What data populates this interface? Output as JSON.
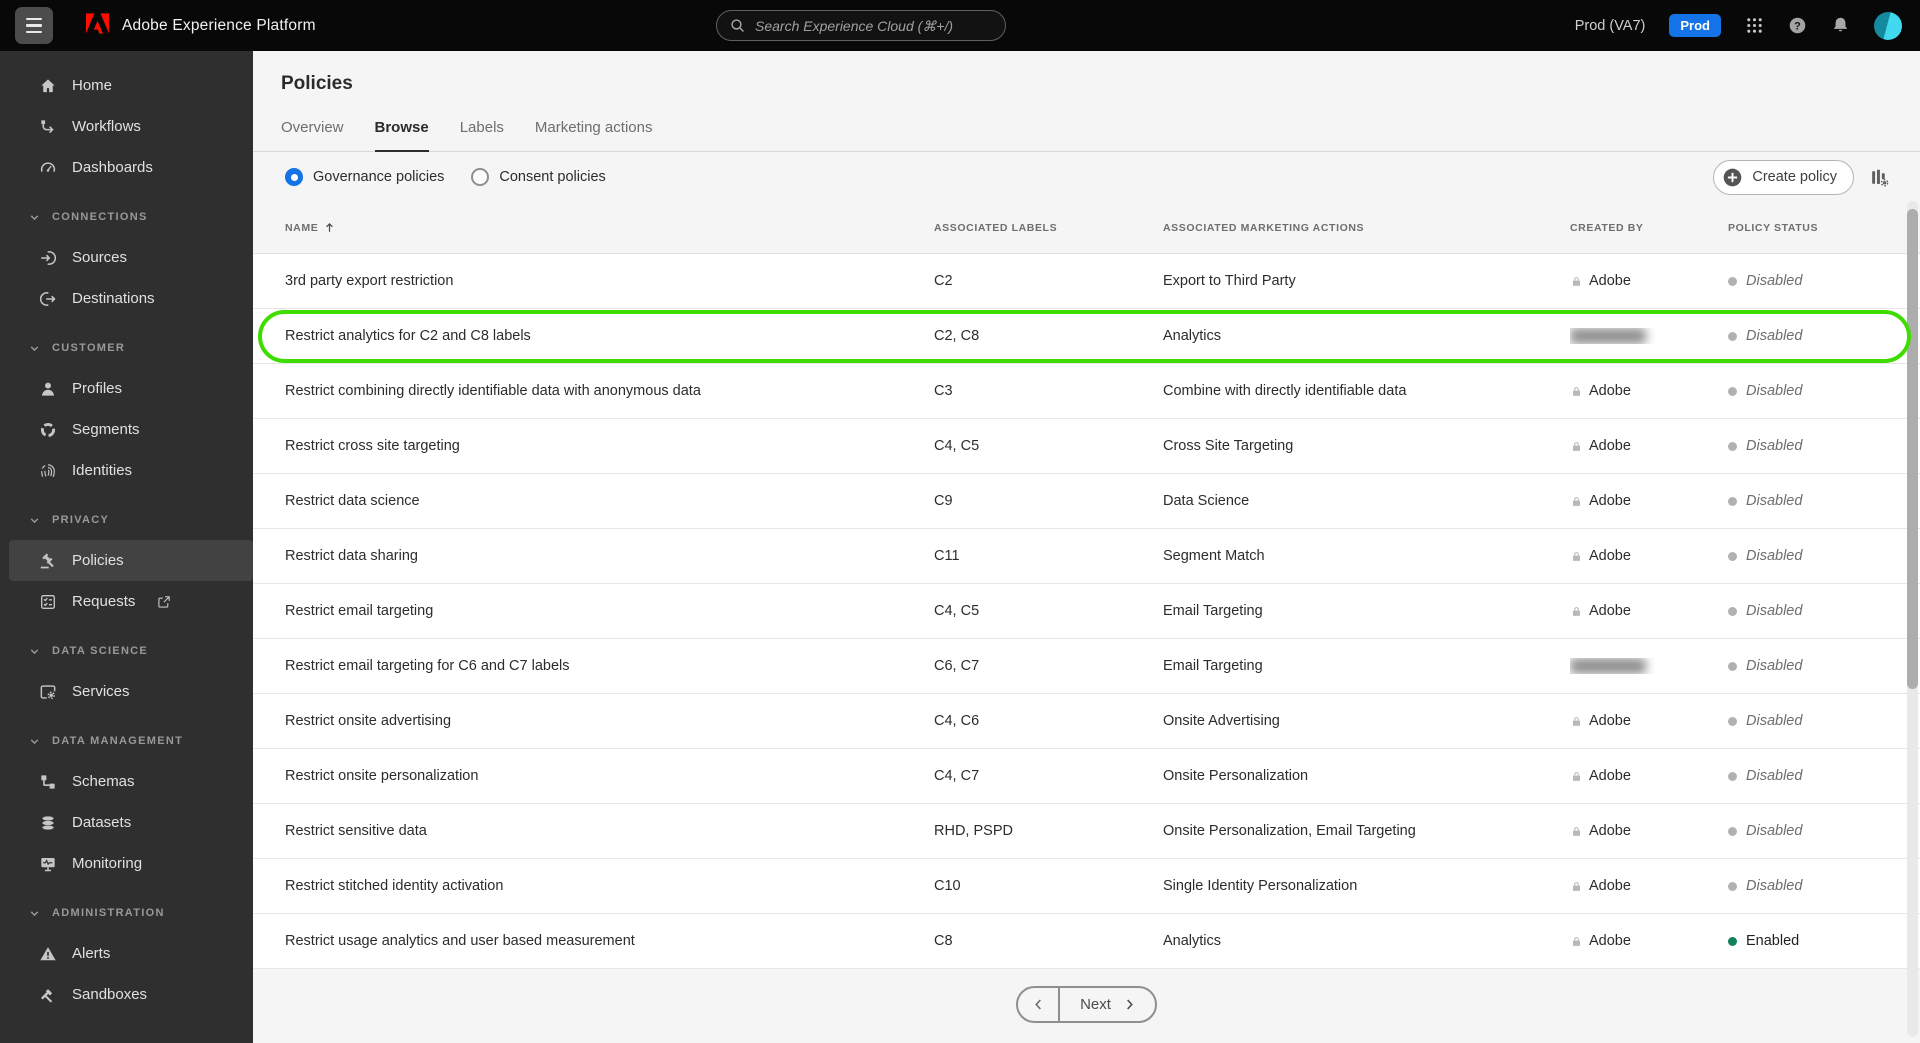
{
  "topbar": {
    "app_title": "Adobe Experience Platform",
    "search_placeholder": "Search Experience Cloud (⌘+/)",
    "environment": "Prod (VA7)",
    "environment_badge": "Prod"
  },
  "sidebar": {
    "entries": [
      {
        "_name": "sidebar-item-home",
        "cls": "nav",
        "icon": "home",
        "label": "Home"
      },
      {
        "_name": "sidebar-item-workflows",
        "cls": "nav",
        "icon": "workflows",
        "label": "Workflows"
      },
      {
        "_name": "sidebar-item-dashboards",
        "cls": "nav",
        "icon": "dashboards",
        "label": "Dashboards"
      },
      {
        "_name": "sidebar-section-connections",
        "cls": "section",
        "label": "CONNECTIONS"
      },
      {
        "_name": "sidebar-item-sources",
        "cls": "nav",
        "icon": "sources",
        "label": "Sources"
      },
      {
        "_name": "sidebar-item-destinations",
        "cls": "nav",
        "icon": "destinations",
        "label": "Destinations"
      },
      {
        "_name": "sidebar-section-customer",
        "cls": "section",
        "label": "CUSTOMER"
      },
      {
        "_name": "sidebar-item-profiles",
        "cls": "nav",
        "icon": "profiles",
        "label": "Profiles"
      },
      {
        "_name": "sidebar-item-segments",
        "cls": "nav",
        "icon": "segments",
        "label": "Segments"
      },
      {
        "_name": "sidebar-item-identities",
        "cls": "nav",
        "icon": "identities",
        "label": "Identities"
      },
      {
        "_name": "sidebar-section-privacy",
        "cls": "section",
        "label": "PRIVACY"
      },
      {
        "_name": "sidebar-item-policies",
        "cls": "nav selected",
        "icon": "policies",
        "label": "Policies"
      },
      {
        "_name": "sidebar-item-requests",
        "cls": "nav",
        "icon": "requests",
        "label": "Requests",
        "trailing": "external-link"
      },
      {
        "_name": "sidebar-section-data-science",
        "cls": "section",
        "label": "DATA SCIENCE"
      },
      {
        "_name": "sidebar-item-services",
        "cls": "nav",
        "icon": "services",
        "label": "Services"
      },
      {
        "_name": "sidebar-section-data-management",
        "cls": "section",
        "label": "DATA MANAGEMENT"
      },
      {
        "_name": "sidebar-item-schemas",
        "cls": "nav",
        "icon": "schemas",
        "label": "Schemas"
      },
      {
        "_name": "sidebar-item-datasets",
        "cls": "nav",
        "icon": "datasets",
        "label": "Datasets"
      },
      {
        "_name": "sidebar-item-monitoring",
        "cls": "nav",
        "icon": "monitoring",
        "label": "Monitoring"
      },
      {
        "_name": "sidebar-section-administration",
        "cls": "section",
        "label": "ADMINISTRATION"
      },
      {
        "_name": "sidebar-item-alerts",
        "cls": "nav",
        "icon": "alerts",
        "label": "Alerts"
      },
      {
        "_name": "sidebar-item-sandboxes",
        "cls": "nav",
        "icon": "sandboxes",
        "label": "Sandboxes"
      }
    ]
  },
  "page": {
    "title": "Policies",
    "tabs": [
      {
        "_name": "tab-overview",
        "label": "Overview",
        "cls": ""
      },
      {
        "_name": "tab-browse",
        "label": "Browse",
        "cls": "active"
      },
      {
        "_name": "tab-labels",
        "label": "Labels",
        "cls": ""
      },
      {
        "_name": "tab-marketing-actions",
        "label": "Marketing actions",
        "cls": ""
      }
    ],
    "policy_type_options": [
      {
        "_name": "radio-governance-policies",
        "label": "Governance policies",
        "cls": "selected"
      },
      {
        "_name": "radio-consent-policies",
        "label": "Consent policies",
        "cls": ""
      }
    ],
    "create_button_label": "Create policy"
  },
  "table": {
    "columns": {
      "name": "NAME",
      "labels": "ASSOCIATED LABELS",
      "actions": "ASSOCIATED MARKETING ACTIONS",
      "created": "CREATED BY",
      "status": "POLICY STATUS"
    },
    "rows": [
      {
        "_name": "table-row",
        "name": "3rd party export restriction",
        "labels": "C2",
        "actions": "Export to Third Party",
        "created_by": "Adobe",
        "status": "Disabled",
        "status_cls": "disabled"
      },
      {
        "_name": "table-row",
        "name": "Restrict analytics for C2 and C8 labels",
        "labels": "C2, C8",
        "actions": "Analytics",
        "created_by": "",
        "created_cls": "redacted",
        "status": "Disabled",
        "status_cls": "disabled",
        "row_cls": "highlighted"
      },
      {
        "_name": "table-row",
        "name": "Restrict combining directly identifiable data with anonymous data",
        "labels": "C3",
        "actions": "Combine with directly identifiable data",
        "created_by": "Adobe",
        "status": "Disabled",
        "status_cls": "disabled"
      },
      {
        "_name": "table-row",
        "name": "Restrict cross site targeting",
        "labels": "C4, C5",
        "actions": "Cross Site Targeting",
        "created_by": "Adobe",
        "status": "Disabled",
        "status_cls": "disabled"
      },
      {
        "_name": "table-row",
        "name": "Restrict data science",
        "labels": "C9",
        "actions": "Data Science",
        "created_by": "Adobe",
        "status": "Disabled",
        "status_cls": "disabled"
      },
      {
        "_name": "table-row",
        "name": "Restrict data sharing",
        "labels": "C11",
        "actions": "Segment Match",
        "created_by": "Adobe",
        "status": "Disabled",
        "status_cls": "disabled"
      },
      {
        "_name": "table-row",
        "name": "Restrict email targeting",
        "labels": "C4, C5",
        "actions": "Email Targeting",
        "created_by": "Adobe",
        "status": "Disabled",
        "status_cls": "disabled"
      },
      {
        "_name": "table-row",
        "name": "Restrict email targeting for C6 and C7 labels",
        "labels": "C6, C7",
        "actions": "Email Targeting",
        "created_by": "",
        "created_cls": "redacted",
        "status": "Disabled",
        "status_cls": "disabled"
      },
      {
        "_name": "table-row",
        "name": "Restrict onsite advertising",
        "labels": "C4, C6",
        "actions": "Onsite Advertising",
        "created_by": "Adobe",
        "status": "Disabled",
        "status_cls": "disabled"
      },
      {
        "_name": "table-row",
        "name": "Restrict onsite personalization",
        "labels": "C4, C7",
        "actions": "Onsite Personalization",
        "created_by": "Adobe",
        "status": "Disabled",
        "status_cls": "disabled"
      },
      {
        "_name": "table-row",
        "name": "Restrict sensitive data",
        "labels": "RHD, PSPD",
        "actions": "Onsite Personalization, Email Targeting",
        "created_by": "Adobe",
        "status": "Disabled",
        "status_cls": "disabled"
      },
      {
        "_name": "table-row",
        "name": "Restrict stitched identity activation",
        "labels": "C10",
        "actions": "Single Identity Personalization",
        "created_by": "Adobe",
        "status": "Disabled",
        "status_cls": "disabled"
      },
      {
        "_name": "table-row",
        "name": "Restrict usage analytics and user based measurement",
        "labels": "C8",
        "actions": "Analytics",
        "created_by": "Adobe",
        "status": "Enabled",
        "status_cls": "enabled"
      }
    ]
  },
  "pagination": {
    "next_label": "Next"
  },
  "colors": {
    "accent_blue": "#1473E6",
    "highlight_green": "#3FDC00",
    "enabled_green": "#12805C",
    "adobe_red": "#FA0F00"
  }
}
